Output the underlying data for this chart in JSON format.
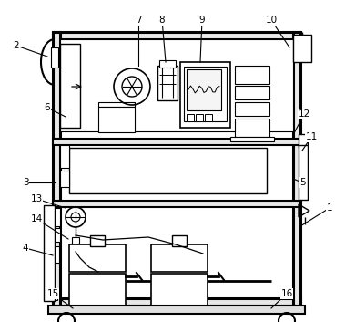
{
  "bg_color": "#ffffff",
  "line_color": "#000000",
  "figsize": [
    3.79,
    3.53
  ],
  "dpi": 100,
  "annotations": [
    [
      "1",
      362,
      228,
      330,
      248
    ],
    [
      "2",
      18,
      50,
      52,
      62
    ],
    [
      "3",
      28,
      200,
      60,
      200
    ],
    [
      "4",
      28,
      272,
      58,
      280
    ],
    [
      "5",
      332,
      200,
      322,
      196
    ],
    [
      "6",
      52,
      118,
      72,
      128
    ],
    [
      "7",
      152,
      22,
      152,
      72
    ],
    [
      "8",
      178,
      22,
      182,
      68
    ],
    [
      "9",
      222,
      22,
      220,
      68
    ],
    [
      "10",
      298,
      22,
      318,
      52
    ],
    [
      "11",
      342,
      150,
      332,
      165
    ],
    [
      "12",
      334,
      125,
      322,
      148
    ],
    [
      "13",
      40,
      218,
      72,
      228
    ],
    [
      "14",
      40,
      240,
      75,
      262
    ],
    [
      "15",
      58,
      322,
      80,
      338
    ],
    [
      "16",
      315,
      322,
      298,
      338
    ]
  ]
}
